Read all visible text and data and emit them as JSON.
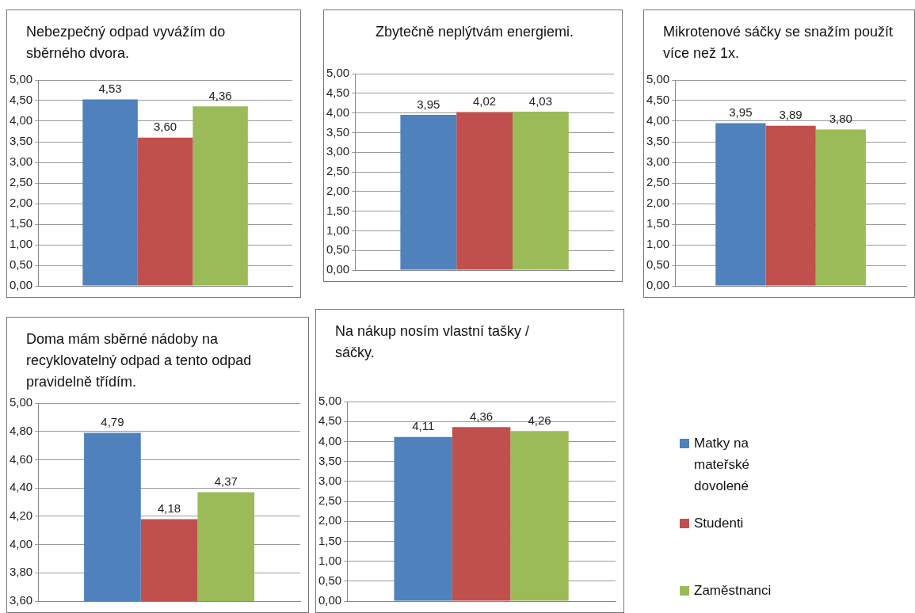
{
  "chart_data": [
    {
      "type": "bar",
      "title": "Nebezpečný odpad vyvážím do sběrného dvora.",
      "categories": [
        null
      ],
      "ylim": [
        0,
        5
      ],
      "yticks": [
        {
          "value": 0,
          "label": "0,00"
        },
        {
          "value": 0.5,
          "label": "0,50"
        },
        {
          "value": 1,
          "label": "1,00"
        },
        {
          "value": 1.5,
          "label": "1,50"
        },
        {
          "value": 2,
          "label": "2,00"
        },
        {
          "value": 2.5,
          "label": "2,50"
        },
        {
          "value": 3,
          "label": "3,00"
        },
        {
          "value": 3.5,
          "label": "3,50"
        },
        {
          "value": 4,
          "label": "4,00"
        },
        {
          "value": 4.5,
          "label": "4,50"
        },
        {
          "value": 5,
          "label": "5,00"
        }
      ],
      "grid": "y",
      "legend": false,
      "series": [
        {
          "color": "#4f81bd",
          "values": [
            4.53
          ],
          "value_labels": [
            "4,53"
          ]
        },
        {
          "color": "#c0504d",
          "values": [
            3.6
          ],
          "value_labels": [
            "3,60"
          ]
        },
        {
          "color": "#9bbb59",
          "values": [
            4.36
          ],
          "value_labels": [
            "4,36"
          ]
        }
      ]
    },
    {
      "type": "bar",
      "title": "Zbytečně neplýtvám energiemi.",
      "categories": [
        null
      ],
      "ylim": [
        0,
        5
      ],
      "yticks": [
        {
          "value": 0,
          "label": "0,00"
        },
        {
          "value": 0.5,
          "label": "0,50"
        },
        {
          "value": 1,
          "label": "1,00"
        },
        {
          "value": 1.5,
          "label": "1,50"
        },
        {
          "value": 2,
          "label": "2,00"
        },
        {
          "value": 2.5,
          "label": "2,50"
        },
        {
          "value": 3,
          "label": "3,00"
        },
        {
          "value": 3.5,
          "label": "3,50"
        },
        {
          "value": 4,
          "label": "4,00"
        },
        {
          "value": 4.5,
          "label": "4,50"
        },
        {
          "value": 5,
          "label": "5,00"
        }
      ],
      "grid": "y",
      "legend": false,
      "series": [
        {
          "color": "#4f81bd",
          "values": [
            3.95
          ],
          "value_labels": [
            "3,95"
          ]
        },
        {
          "color": "#c0504d",
          "values": [
            4.02
          ],
          "value_labels": [
            "4,02"
          ]
        },
        {
          "color": "#9bbb59",
          "values": [
            4.03
          ],
          "value_labels": [
            "4,03"
          ]
        }
      ]
    },
    {
      "type": "bar",
      "title": "Mikrotenové sáčky se snažím použít více než 1x.",
      "categories": [
        null
      ],
      "ylim": [
        0,
        5
      ],
      "yticks": [
        {
          "value": 0,
          "label": "0,00"
        },
        {
          "value": 0.5,
          "label": "0,50"
        },
        {
          "value": 1,
          "label": "1,00"
        },
        {
          "value": 1.5,
          "label": "1,50"
        },
        {
          "value": 2,
          "label": "2,00"
        },
        {
          "value": 2.5,
          "label": "2,50"
        },
        {
          "value": 3,
          "label": "3,00"
        },
        {
          "value": 3.5,
          "label": "3,50"
        },
        {
          "value": 4,
          "label": "4,00"
        },
        {
          "value": 4.5,
          "label": "4,50"
        },
        {
          "value": 5,
          "label": "5,00"
        }
      ],
      "grid": "y",
      "legend": false,
      "series": [
        {
          "color": "#4f81bd",
          "values": [
            3.95
          ],
          "value_labels": [
            "3,95"
          ]
        },
        {
          "color": "#c0504d",
          "values": [
            3.89
          ],
          "value_labels": [
            "3,89"
          ]
        },
        {
          "color": "#9bbb59",
          "values": [
            3.8
          ],
          "value_labels": [
            "3,80"
          ]
        }
      ]
    },
    {
      "type": "bar",
      "title": "Doma mám sběrné nádoby na recyklovatelný odpad a tento odpad pravidelně třídím.",
      "categories": [
        null
      ],
      "ylim": [
        3.6,
        5
      ],
      "yticks": [
        {
          "value": 3.6,
          "label": "3,60"
        },
        {
          "value": 3.8,
          "label": "3,80"
        },
        {
          "value": 4,
          "label": "4,00"
        },
        {
          "value": 4.2,
          "label": "4,20"
        },
        {
          "value": 4.4,
          "label": "4,40"
        },
        {
          "value": 4.6,
          "label": "4,60"
        },
        {
          "value": 4.8,
          "label": "4,80"
        },
        {
          "value": 5,
          "label": "5,00"
        }
      ],
      "grid": "y",
      "legend": false,
      "series": [
        {
          "color": "#4f81bd",
          "values": [
            4.79
          ],
          "value_labels": [
            "4,79"
          ]
        },
        {
          "color": "#c0504d",
          "values": [
            4.18
          ],
          "value_labels": [
            "4,18"
          ]
        },
        {
          "color": "#9bbb59",
          "values": [
            4.37
          ],
          "value_labels": [
            "4,37"
          ]
        }
      ]
    },
    {
      "type": "bar",
      "title": "Na nákup nosím vlastní tašky / sáčky.",
      "categories": [
        null
      ],
      "ylim": [
        0,
        5
      ],
      "yticks": [
        {
          "value": 0,
          "label": "0,00"
        },
        {
          "value": 0.5,
          "label": "0,50"
        },
        {
          "value": 1,
          "label": "1,00"
        },
        {
          "value": 1.5,
          "label": "1,50"
        },
        {
          "value": 2,
          "label": "2,00"
        },
        {
          "value": 2.5,
          "label": "2,50"
        },
        {
          "value": 3,
          "label": "3,00"
        },
        {
          "value": 3.5,
          "label": "3,50"
        },
        {
          "value": 4,
          "label": "4,00"
        },
        {
          "value": 4.5,
          "label": "4,50"
        },
        {
          "value": 5,
          "label": "5,00"
        }
      ],
      "grid": "y",
      "legend": "right",
      "series": [
        {
          "name": "Matky na mateřské dovolené",
          "color": "#4f81bd",
          "values": [
            4.11
          ],
          "value_labels": [
            "4,11"
          ]
        },
        {
          "name": "Studenti",
          "color": "#c0504d",
          "values": [
            4.36
          ],
          "value_labels": [
            "4,36"
          ]
        },
        {
          "name": "Zaměstnanci",
          "color": "#9bbb59",
          "values": [
            4.26
          ],
          "value_labels": [
            "4,26"
          ]
        }
      ]
    }
  ]
}
